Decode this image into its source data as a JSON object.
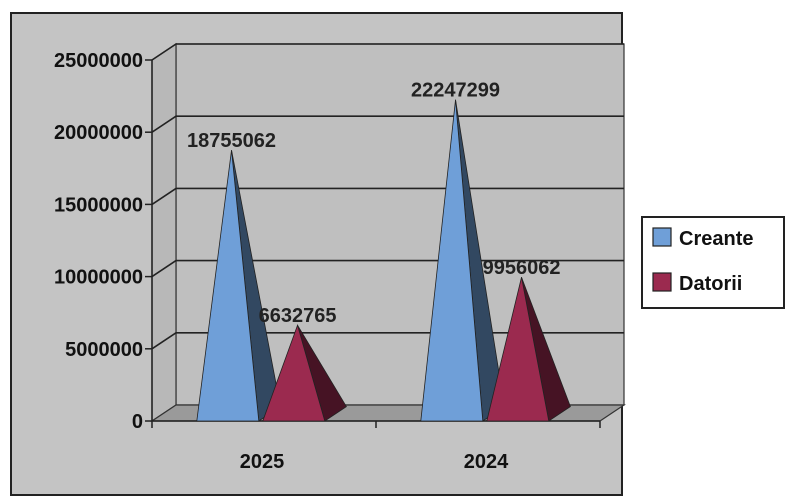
{
  "chart_data": {
    "type": "bar",
    "categories": [
      "2025",
      "2024"
    ],
    "series": [
      {
        "name": "Creante",
        "values": [
          18755062,
          22247299
        ],
        "color": "#6f9fd8"
      },
      {
        "name": "Datorii",
        "values": [
          6632765,
          9956062
        ],
        "color": "#9b2a4f"
      }
    ],
    "data_labels": [
      "18755062",
      "6632765",
      "22247299",
      "9956062"
    ],
    "ylim": [
      0,
      25000000
    ],
    "yticks": [
      0,
      5000000,
      10000000,
      15000000,
      20000000,
      25000000
    ],
    "ytick_labels": [
      "0",
      "5000000",
      "10000000",
      "15000000",
      "20000000",
      "25000000"
    ],
    "grid": true,
    "legend_position": "right",
    "plot_background": "#bfbfbf",
    "shape": "3d-pyramid"
  }
}
